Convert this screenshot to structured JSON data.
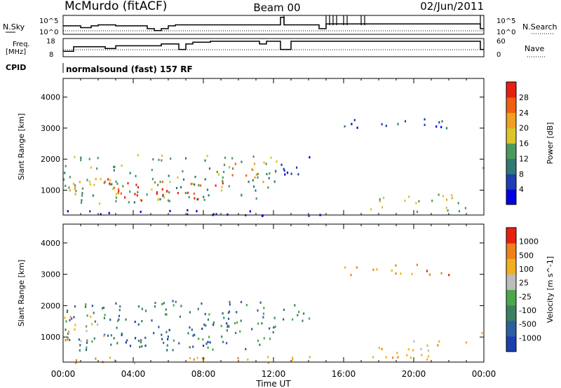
{
  "header": {
    "station": "McMurdo (fitACF)",
    "beam": "Beam 00",
    "date": "02/Jun/2011"
  },
  "strips": {
    "nsky_label": "N.Sky",
    "nsky_ticks": [
      "10^5",
      "10^0"
    ],
    "nsearch_label": "N.Search",
    "nsearch_ticks": [
      "10^5",
      "10^0"
    ],
    "freq_label_1": "Freq.",
    "freq_label_2": "[MHz]",
    "freq_ticks": [
      "18",
      "8"
    ],
    "nave_label": "Nave",
    "nave_ticks": [
      "60",
      "0"
    ],
    "cpid_label": "CPID",
    "cpid_value": "normalsound (fast) 157 RF"
  },
  "chart_data": [
    {
      "type": "heatmap",
      "panel": "power",
      "xlabel": "Time UT",
      "ylabel": "Slant Range [km]",
      "xlim_hours": [
        0,
        24
      ],
      "ylim": [
        200,
        4600
      ],
      "x_ticks": [
        "00:00",
        "04:00",
        "08:00",
        "12:00",
        "16:00",
        "20:00",
        "00:00"
      ],
      "y_ticks": [
        1000,
        2000,
        3000,
        4000
      ],
      "colorbar_label": "Power [dB]",
      "colorbar_ticks": [
        "28",
        "24",
        "20",
        "16",
        "12",
        "8",
        "4"
      ],
      "colors": [
        "#0000e0",
        "#1e3fb4",
        "#2f7a72",
        "#4a9a5c",
        "#d8c62a",
        "#f0a01e",
        "#f06010",
        "#e82010"
      ],
      "regions": [
        {
          "t0": 0.0,
          "t1": 12.2,
          "r0": 600,
          "r1": 2200,
          "level": 3
        },
        {
          "t0": 2.5,
          "t1": 9.3,
          "r0": 700,
          "r1": 1400,
          "level": 7
        },
        {
          "t0": 0.3,
          "t1": 3.0,
          "r0": 900,
          "r1": 1600,
          "level": 5
        },
        {
          "t0": 9.0,
          "t1": 11.5,
          "r0": 1300,
          "r1": 2000,
          "level": 5
        },
        {
          "t0": 12.2,
          "t1": 14.5,
          "r0": 1500,
          "r1": 2100,
          "level": 1
        },
        {
          "t0": 17.5,
          "t1": 23.0,
          "r0": 300,
          "r1": 900,
          "level": 4
        },
        {
          "t0": 16.0,
          "t1": 22.0,
          "r0": 3000,
          "r1": 3400,
          "level": 1
        },
        {
          "t0": 23.8,
          "t1": 24.0,
          "r0": 1100,
          "r1": 1800,
          "level": 4
        },
        {
          "t0": 0.0,
          "t1": 15.0,
          "r0": 200,
          "r1": 400,
          "level": 0
        }
      ]
    },
    {
      "type": "heatmap",
      "panel": "velocity",
      "xlabel": "Time UT",
      "ylabel": "Slant Range [km]",
      "xlim_hours": [
        0,
        24
      ],
      "ylim": [
        200,
        4600
      ],
      "x_ticks": [
        "00:00",
        "04:00",
        "08:00",
        "12:00",
        "16:00",
        "20:00",
        "00:00"
      ],
      "y_ticks": [
        1000,
        2000,
        3000,
        4000
      ],
      "colorbar_label": "Velocity [m s^-1]",
      "colorbar_ticks": [
        "1000",
        "500",
        "100",
        "25",
        "-25",
        "-100",
        "-500",
        "-1000"
      ],
      "colors": [
        "#1c3fb0",
        "#2c5fa0",
        "#3c8060",
        "#4aa84a",
        "#bcbcbc",
        "#f0b020",
        "#f08018",
        "#e82010"
      ],
      "regions": [
        {
          "t0": 0.0,
          "t1": 12.2,
          "r0": 600,
          "r1": 2200,
          "level": 2
        },
        {
          "t0": 0.0,
          "t1": 2.5,
          "r0": 900,
          "r1": 1800,
          "level": 5
        },
        {
          "t0": 2.5,
          "t1": 9.5,
          "r0": 700,
          "r1": 1600,
          "level": 1
        },
        {
          "t0": 12.2,
          "t1": 14.5,
          "r0": 1500,
          "r1": 2100,
          "level": 2
        },
        {
          "t0": 17.5,
          "t1": 23.0,
          "r0": 300,
          "r1": 900,
          "level": 5
        },
        {
          "t0": 16.0,
          "t1": 22.0,
          "r0": 3000,
          "r1": 3400,
          "level": 6
        },
        {
          "t0": 23.8,
          "t1": 24.0,
          "r0": 1100,
          "r1": 1700,
          "level": 6
        },
        {
          "t0": 0.0,
          "t1": 15.0,
          "r0": 200,
          "r1": 400,
          "level": 5
        }
      ]
    }
  ],
  "strip_data": {
    "nsky_t": [
      0,
      0.8,
      1.0,
      1.6,
      2.0,
      3.0,
      4.8,
      5.2,
      5.6,
      6.0,
      6.4,
      8.0,
      10.0,
      12.4,
      12.6,
      14.6,
      15.0,
      18.0,
      22.0,
      23.8,
      24.0
    ],
    "nsky_v": [
      0.45,
      0.45,
      0.35,
      0.45,
      0.5,
      0.45,
      0.3,
      0.2,
      0.3,
      0.45,
      0.5,
      0.5,
      0.5,
      0.9,
      0.5,
      0.3,
      0.55,
      0.55,
      0.55,
      0.3,
      0.3
    ],
    "freq_t": [
      0,
      0.6,
      2.4,
      3.0,
      5.6,
      6.6,
      7.0,
      7.4,
      8.4,
      11.2,
      11.6,
      12.4,
      13.0,
      23.8,
      24.0
    ],
    "freq_v": [
      0.3,
      0.55,
      0.45,
      0.6,
      0.7,
      0.4,
      0.7,
      0.8,
      0.85,
      0.7,
      0.85,
      0.4,
      0.85,
      0.4,
      0.4
    ]
  }
}
